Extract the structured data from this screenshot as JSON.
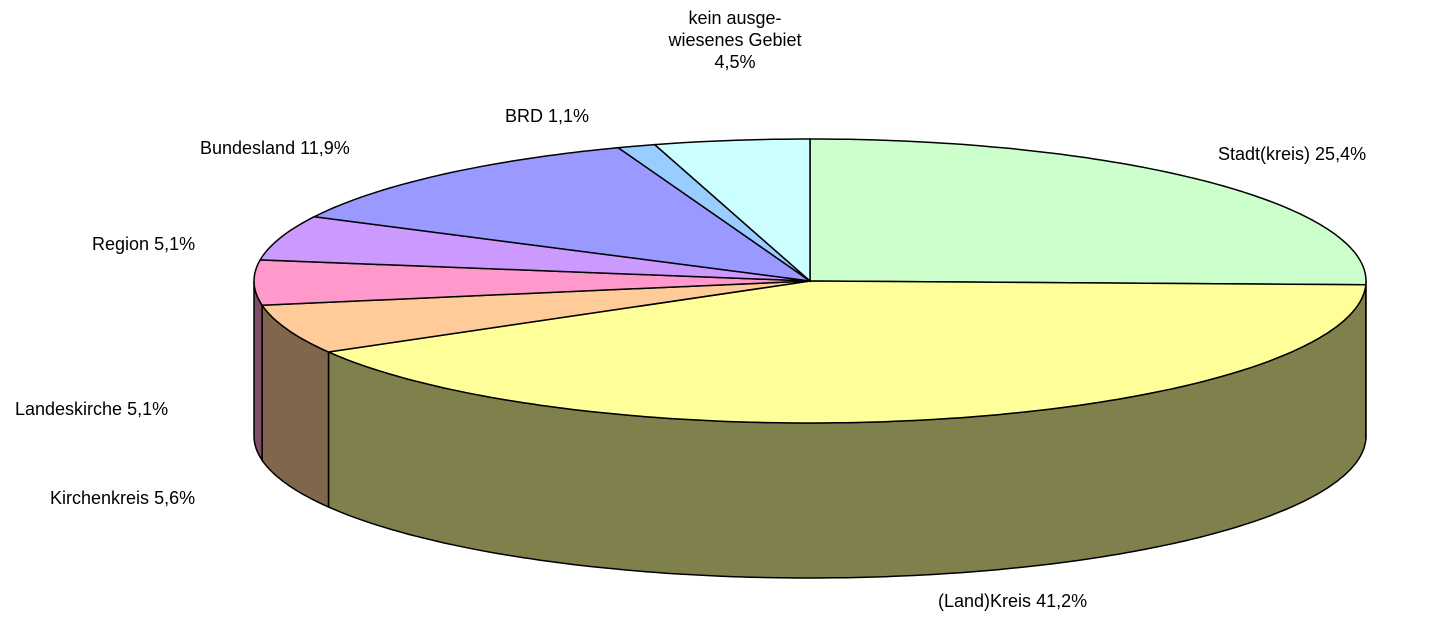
{
  "chart_data": {
    "type": "pie3d",
    "categories": [
      "Stadt(kreis)",
      "(Land)Kreis",
      "Kirchenkreis",
      "Landeskirche",
      "Region",
      "Bundesland",
      "BRD",
      "kein ausge- wiesenes Gebiet"
    ],
    "values": [
      25.4,
      41.2,
      5.6,
      5.1,
      5.1,
      11.9,
      1.1,
      4.5
    ],
    "value_labels": [
      "25,4%",
      "41,2%",
      "5,6%",
      "5,1%",
      "5,1%",
      "11,9%",
      "1,1%",
      "4,5%"
    ],
    "colors": [
      "#CCFFCC",
      "#FFFF99",
      "#FFCC99",
      "#FF99CC",
      "#CC99FF",
      "#9999FF",
      "#99CCFF",
      "#CCFFFF"
    ]
  }
}
